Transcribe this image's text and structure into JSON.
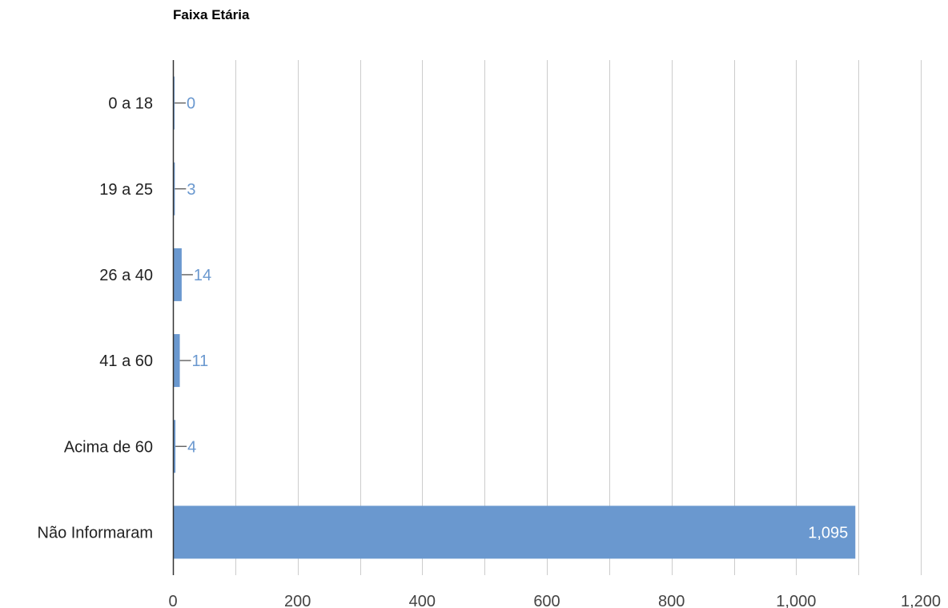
{
  "chart_data": {
    "type": "bar",
    "orientation": "horizontal",
    "title": "Faixa Etária",
    "xlabel": "",
    "ylabel": "",
    "categories": [
      "0 a 18",
      "19 a 25",
      "26 a 40",
      "41 a 60",
      "Acima de 60",
      "Não Informaram"
    ],
    "values": [
      0,
      3,
      14,
      11,
      4,
      1095
    ],
    "value_labels": [
      "0",
      "3",
      "14",
      "11",
      "4",
      "1,095"
    ],
    "xlim": [
      0,
      1200
    ],
    "major_ticks": [
      0,
      200,
      400,
      600,
      800,
      1000,
      1200
    ],
    "tick_labels": [
      "0",
      "200",
      "400",
      "600",
      "800",
      "1,000",
      "1,200"
    ],
    "minor_gridlines": [
      100,
      300,
      500,
      700,
      900,
      1100
    ],
    "grid": true,
    "legend": "none",
    "colors": {
      "bar": "#6a98cf",
      "value_label_outside": "#6a98cf",
      "value_label_inside": "#ffffff",
      "gridline": "#cccccc",
      "axis": "#333333"
    }
  }
}
